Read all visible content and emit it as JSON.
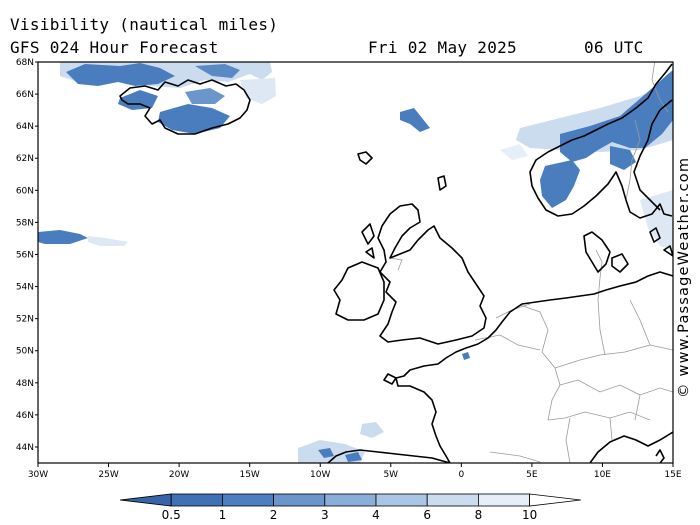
{
  "header": {
    "title": "Visibility (nautical miles)",
    "subtitle": "GFS 024 Hour Forecast",
    "date": "Fri 02 May 2025",
    "time": "06 UTC"
  },
  "credit": "© www.PassageWeather.com",
  "map": {
    "lon_ticks": [
      {
        "value": -30,
        "label": "30W"
      },
      {
        "value": -25,
        "label": "25W"
      },
      {
        "value": -20,
        "label": "20W"
      },
      {
        "value": -15,
        "label": "15W"
      },
      {
        "value": -10,
        "label": "10W"
      },
      {
        "value": -5,
        "label": "5W"
      },
      {
        "value": 0,
        "label": "0"
      },
      {
        "value": 5,
        "label": "5E"
      },
      {
        "value": 10,
        "label": "10E"
      },
      {
        "value": 15,
        "label": "15E"
      }
    ],
    "lat_ticks": [
      {
        "value": 44,
        "label": "44N"
      },
      {
        "value": 46,
        "label": "46N"
      },
      {
        "value": 48,
        "label": "48N"
      },
      {
        "value": 50,
        "label": "50N"
      },
      {
        "value": 52,
        "label": "52N"
      },
      {
        "value": 54,
        "label": "54N"
      },
      {
        "value": 56,
        "label": "56N"
      },
      {
        "value": 58,
        "label": "58N"
      },
      {
        "value": 60,
        "label": "60N"
      },
      {
        "value": 62,
        "label": "62N"
      },
      {
        "value": 64,
        "label": "64N"
      },
      {
        "value": 66,
        "label": "66N"
      },
      {
        "value": 68,
        "label": "68N"
      }
    ],
    "lon_range": [
      -30,
      15
    ],
    "lat_range": [
      43,
      68
    ]
  },
  "colorbar": {
    "levels": [
      {
        "label": "0.5",
        "color": "#3f72b4"
      },
      {
        "label": "1",
        "color": "#4c7fbf"
      },
      {
        "label": "2",
        "color": "#6a96cb"
      },
      {
        "label": "3",
        "color": "#8aaed8"
      },
      {
        "label": "4",
        "color": "#abc6e4"
      },
      {
        "label": "6",
        "color": "#cbdcef"
      },
      {
        "label": "8",
        "color": "#e6eef8"
      },
      {
        "label": "10",
        "color": "#ffffff"
      }
    ],
    "low_color": "#3565a8"
  }
}
